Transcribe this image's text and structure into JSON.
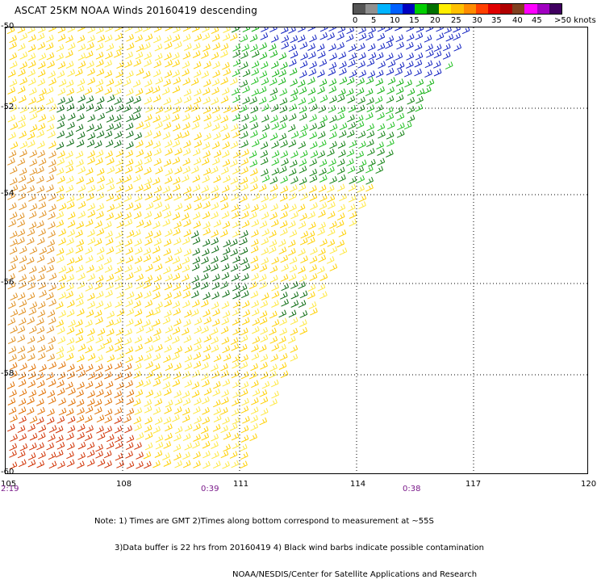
{
  "title": "ASCAT 25KM NOAA Winds 20160419 descending",
  "legend": {
    "labels": [
      "0",
      "5",
      "10",
      "15",
      "20",
      "25",
      "30",
      "35",
      "40",
      "45",
      ">50 knots"
    ],
    "colors": [
      "#555555",
      "#909090",
      "#00b4ff",
      "#0060ff",
      "#0000c0",
      "#00d000",
      "#007000",
      "#ffee00",
      "#ffc000",
      "#ff8c00",
      "#ff4000",
      "#e00000",
      "#b00000",
      "#804020",
      "#ff00ff",
      "#a000c0",
      "#400060"
    ]
  },
  "axes": {
    "lat_labels": [
      "-50",
      "-52",
      "-54",
      "-56",
      "-58",
      "-60"
    ],
    "lon_labels": [
      "105",
      "108",
      "111",
      "114",
      "117",
      "120"
    ],
    "times": [
      "2:19",
      "0:39",
      "0:38"
    ]
  },
  "notes": [
    "Note: 1) Times are GMT 2)Times along bottom correspond to measurement at ~55S",
    "3)Data buffer is 22 hrs from 20160419 4) Black wind barbs indicate possible contamination",
    "NOAA/NESDIS/Center for Satellite Applications and Research"
  ]
}
